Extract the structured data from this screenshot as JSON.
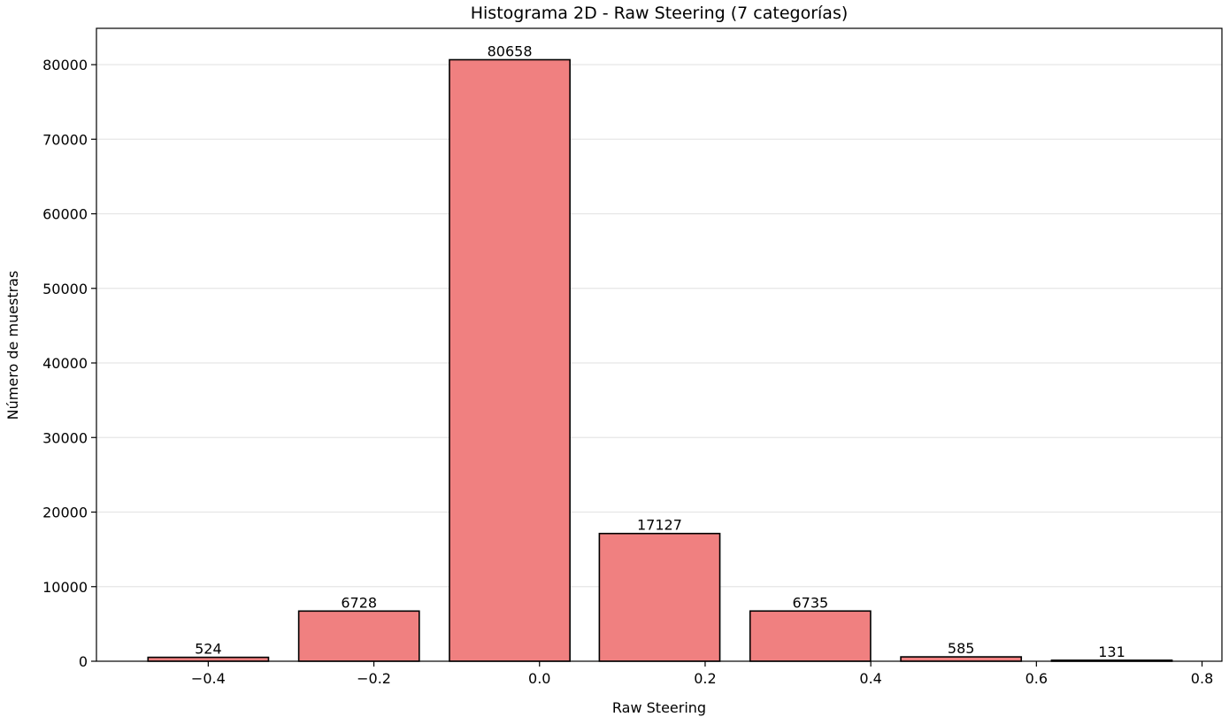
{
  "chart_data": {
    "type": "bar",
    "title": "Histograma 2D - Raw Steering (7 categorías)",
    "xlabel": "Raw Steering",
    "ylabel": "Número de muestras",
    "x": [
      -0.4,
      -0.218,
      -0.036,
      0.145,
      0.327,
      0.509,
      0.691
    ],
    "bar_width": 0.1455,
    "values": [
      524,
      6728,
      80658,
      17127,
      6735,
      585,
      131
    ],
    "data_labels": [
      "524",
      "6728",
      "80658",
      "17127",
      "6735",
      "585",
      "131"
    ],
    "xlim": [
      -0.535,
      0.824
    ],
    "ylim": [
      0,
      84870
    ],
    "xticks": [
      -0.4,
      -0.2,
      0.0,
      0.2,
      0.4,
      0.6,
      0.8
    ],
    "xtick_labels": [
      "−0.4",
      "−0.2",
      "0.0",
      "0.2",
      "0.4",
      "0.6",
      "0.8"
    ],
    "yticks": [
      0,
      10000,
      20000,
      30000,
      40000,
      50000,
      60000,
      70000,
      80000
    ],
    "ytick_labels": [
      "0",
      "10000",
      "20000",
      "30000",
      "40000",
      "50000",
      "60000",
      "70000",
      "80000"
    ],
    "grid": "y",
    "colors": {
      "bar": "#f08080",
      "edge": "#000000",
      "grid": "#e6e6e6"
    }
  }
}
